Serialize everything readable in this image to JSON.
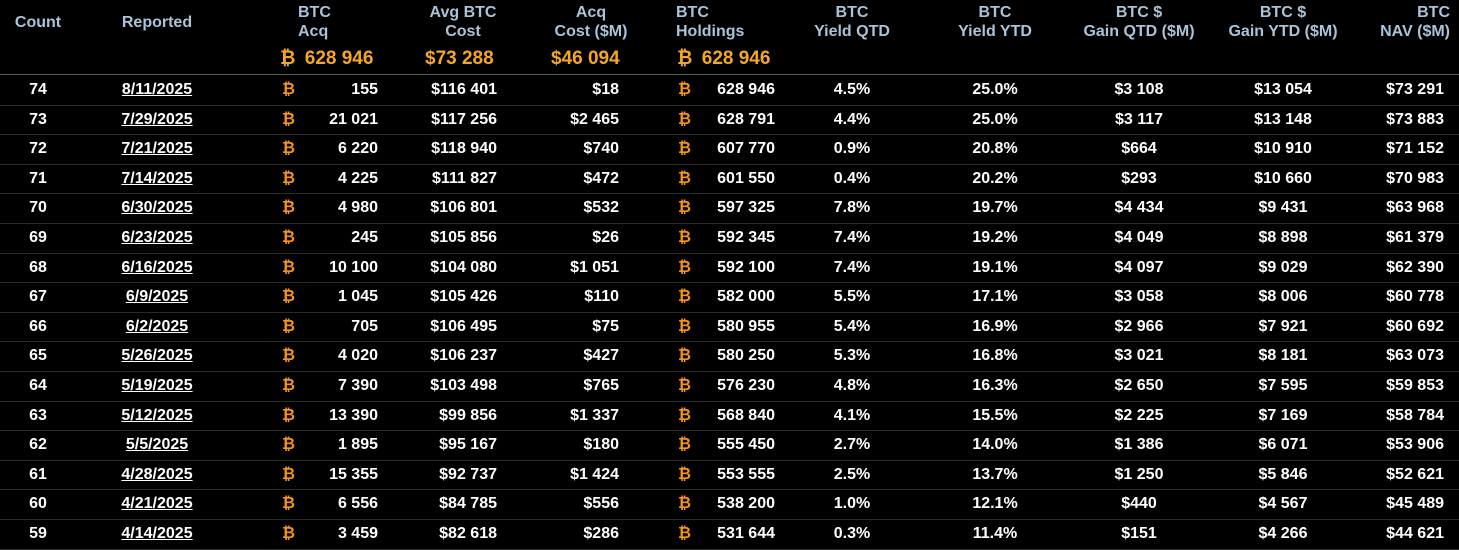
{
  "colors": {
    "header_text": "#a9c3d9",
    "totals_text": "#f5a623",
    "btc_symbol": "#f7931a",
    "background": "#000000"
  },
  "btc_symbol": "₿",
  "headers": {
    "count": "Count",
    "reported": "Reported",
    "btc_acq": [
      "BTC",
      "Acq"
    ],
    "avg_cost": [
      "Avg BTC",
      "Cost"
    ],
    "acq_cost": [
      "Acq",
      "Cost ($M)"
    ],
    "holdings": [
      "BTC",
      "Holdings"
    ],
    "yield_qtd": [
      "BTC",
      "Yield QTD"
    ],
    "yield_ytd": [
      "BTC",
      "Yield YTD"
    ],
    "gain_qtd": [
      "BTC $",
      "Gain QTD ($M)"
    ],
    "gain_ytd": [
      "BTC $",
      "Gain YTD ($M)"
    ],
    "nav": [
      "BTC",
      "NAV ($M)"
    ]
  },
  "totals": {
    "btc_acq": "628 946",
    "avg_cost": "$73 288",
    "acq_cost": "$46 094",
    "holdings": "628 946"
  },
  "rows": [
    {
      "count": "74",
      "reported": "8/11/2025",
      "btc_acq": "155",
      "avg_cost": "$116 401",
      "acq_cost": "$18",
      "holdings": "628 946",
      "yield_qtd": "4.5%",
      "yield_ytd": "25.0%",
      "gain_qtd": "$3 108",
      "gain_ytd": "$13 054",
      "nav": "$73 291"
    },
    {
      "count": "73",
      "reported": "7/29/2025",
      "btc_acq": "21 021",
      "avg_cost": "$117 256",
      "acq_cost": "$2 465",
      "holdings": "628 791",
      "yield_qtd": "4.4%",
      "yield_ytd": "25.0%",
      "gain_qtd": "$3 117",
      "gain_ytd": "$13 148",
      "nav": "$73 883"
    },
    {
      "count": "72",
      "reported": "7/21/2025",
      "btc_acq": "6 220",
      "avg_cost": "$118 940",
      "acq_cost": "$740",
      "holdings": "607 770",
      "yield_qtd": "0.9%",
      "yield_ytd": "20.8%",
      "gain_qtd": "$664",
      "gain_ytd": "$10 910",
      "nav": "$71 152"
    },
    {
      "count": "71",
      "reported": "7/14/2025",
      "btc_acq": "4 225",
      "avg_cost": "$111 827",
      "acq_cost": "$472",
      "holdings": "601 550",
      "yield_qtd": "0.4%",
      "yield_ytd": "20.2%",
      "gain_qtd": "$293",
      "gain_ytd": "$10 660",
      "nav": "$70 983"
    },
    {
      "count": "70",
      "reported": "6/30/2025",
      "btc_acq": "4 980",
      "avg_cost": "$106 801",
      "acq_cost": "$532",
      "holdings": "597 325",
      "yield_qtd": "7.8%",
      "yield_ytd": "19.7%",
      "gain_qtd": "$4 434",
      "gain_ytd": "$9 431",
      "nav": "$63 968"
    },
    {
      "count": "69",
      "reported": "6/23/2025",
      "btc_acq": "245",
      "avg_cost": "$105 856",
      "acq_cost": "$26",
      "holdings": "592 345",
      "yield_qtd": "7.4%",
      "yield_ytd": "19.2%",
      "gain_qtd": "$4 049",
      "gain_ytd": "$8 898",
      "nav": "$61 379"
    },
    {
      "count": "68",
      "reported": "6/16/2025",
      "btc_acq": "10 100",
      "avg_cost": "$104 080",
      "acq_cost": "$1 051",
      "holdings": "592 100",
      "yield_qtd": "7.4%",
      "yield_ytd": "19.1%",
      "gain_qtd": "$4 097",
      "gain_ytd": "$9 029",
      "nav": "$62 390"
    },
    {
      "count": "67",
      "reported": "6/9/2025",
      "btc_acq": "1 045",
      "avg_cost": "$105 426",
      "acq_cost": "$110",
      "holdings": "582 000",
      "yield_qtd": "5.5%",
      "yield_ytd": "17.1%",
      "gain_qtd": "$3 058",
      "gain_ytd": "$8 006",
      "nav": "$60 778"
    },
    {
      "count": "66",
      "reported": "6/2/2025",
      "btc_acq": "705",
      "avg_cost": "$106 495",
      "acq_cost": "$75",
      "holdings": "580 955",
      "yield_qtd": "5.4%",
      "yield_ytd": "16.9%",
      "gain_qtd": "$2 966",
      "gain_ytd": "$7 921",
      "nav": "$60 692"
    },
    {
      "count": "65",
      "reported": "5/26/2025",
      "btc_acq": "4 020",
      "avg_cost": "$106 237",
      "acq_cost": "$427",
      "holdings": "580 250",
      "yield_qtd": "5.3%",
      "yield_ytd": "16.8%",
      "gain_qtd": "$3 021",
      "gain_ytd": "$8 181",
      "nav": "$63 073"
    },
    {
      "count": "64",
      "reported": "5/19/2025",
      "btc_acq": "7 390",
      "avg_cost": "$103 498",
      "acq_cost": "$765",
      "holdings": "576 230",
      "yield_qtd": "4.8%",
      "yield_ytd": "16.3%",
      "gain_qtd": "$2 650",
      "gain_ytd": "$7 595",
      "nav": "$59 853"
    },
    {
      "count": "63",
      "reported": "5/12/2025",
      "btc_acq": "13 390",
      "avg_cost": "$99 856",
      "acq_cost": "$1 337",
      "holdings": "568 840",
      "yield_qtd": "4.1%",
      "yield_ytd": "15.5%",
      "gain_qtd": "$2 225",
      "gain_ytd": "$7 169",
      "nav": "$58 784"
    },
    {
      "count": "62",
      "reported": "5/5/2025",
      "btc_acq": "1 895",
      "avg_cost": "$95 167",
      "acq_cost": "$180",
      "holdings": "555 450",
      "yield_qtd": "2.7%",
      "yield_ytd": "14.0%",
      "gain_qtd": "$1 386",
      "gain_ytd": "$6 071",
      "nav": "$53 906"
    },
    {
      "count": "61",
      "reported": "4/28/2025",
      "btc_acq": "15 355",
      "avg_cost": "$92 737",
      "acq_cost": "$1 424",
      "holdings": "553 555",
      "yield_qtd": "2.5%",
      "yield_ytd": "13.7%",
      "gain_qtd": "$1 250",
      "gain_ytd": "$5 846",
      "nav": "$52 621"
    },
    {
      "count": "60",
      "reported": "4/21/2025",
      "btc_acq": "6 556",
      "avg_cost": "$84 785",
      "acq_cost": "$556",
      "holdings": "538 200",
      "yield_qtd": "1.0%",
      "yield_ytd": "12.1%",
      "gain_qtd": "$440",
      "gain_ytd": "$4 567",
      "nav": "$45 489"
    },
    {
      "count": "59",
      "reported": "4/14/2025",
      "btc_acq": "3 459",
      "avg_cost": "$82 618",
      "acq_cost": "$286",
      "holdings": "531 644",
      "yield_qtd": "0.3%",
      "yield_ytd": "11.4%",
      "gain_qtd": "$151",
      "gain_ytd": "$4 266",
      "nav": "$44 621"
    }
  ]
}
